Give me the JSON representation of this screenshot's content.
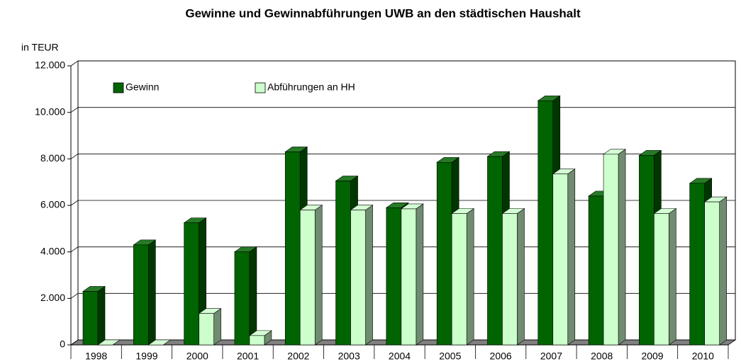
{
  "chart_data": {
    "type": "bar3d",
    "title": "Gewinne und Gewinnabführungen UWB an den städtischen Haushalt",
    "y_label": "in TEUR",
    "categories": [
      "1998",
      "1999",
      "2000",
      "2001",
      "2002",
      "2003",
      "2004",
      "2005",
      "2006",
      "2007",
      "2008",
      "2009",
      "2010"
    ],
    "series": [
      {
        "name": "Gewinn",
        "color": "#006400",
        "values": [
          2300,
          4300,
          5250,
          4000,
          8300,
          7050,
          5900,
          7850,
          8100,
          10500,
          6400,
          8150,
          6950
        ]
      },
      {
        "name": "Abführungen an HH",
        "color": "#ccffcc",
        "values": [
          0,
          0,
          1350,
          400,
          5800,
          5800,
          5850,
          5650,
          5650,
          7350,
          8200,
          5650,
          6150
        ]
      }
    ],
    "ylim": [
      0,
      12000
    ],
    "yticks": [
      0,
      {
        "value": 2000,
        "label": "2.000"
      },
      {
        "value": 4000,
        "label": "4.000"
      },
      {
        "value": 6000,
        "label": "6.000"
      },
      {
        "value": 8000,
        "label": "8.000"
      },
      {
        "value": 10000,
        "label": "10.000"
      },
      {
        "value": 12000,
        "label": "12.000"
      }
    ],
    "grid": true
  }
}
